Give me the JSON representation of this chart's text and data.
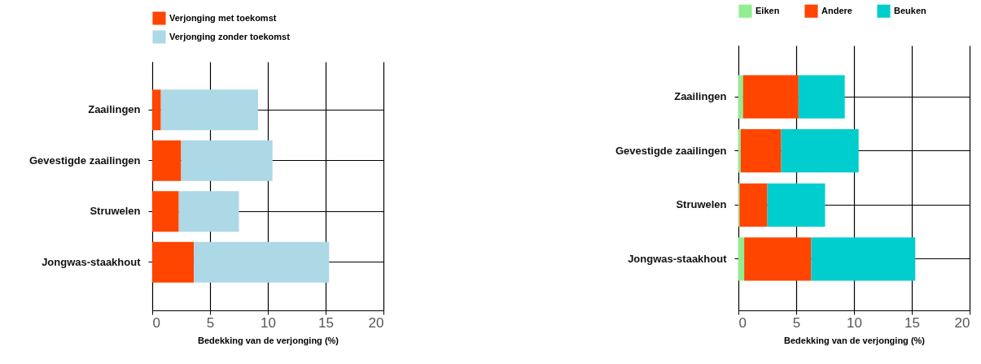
{
  "chart_data": [
    {
      "type": "bar",
      "orientation": "horizontal",
      "stacked": true,
      "categories": [
        "Zaailingen",
        "Gevestigde zaailingen",
        "Struwelen",
        "Jongwas-staakhout"
      ],
      "series": [
        {
          "name": "Verjonging met toekomst",
          "color": "#ff4500",
          "values": [
            0.75,
            2.5,
            2.3,
            3.6
          ]
        },
        {
          "name": "Verjonging zonder toekomst",
          "color": "#add8e6",
          "values": [
            8.4,
            7.9,
            5.2,
            11.7
          ]
        }
      ],
      "xlabel": "Bedekking van de verjonging (%)",
      "xlim": [
        0,
        20
      ],
      "xticks": [
        0,
        5,
        10,
        15,
        20
      ],
      "grid": true,
      "legend": "top"
    },
    {
      "type": "bar",
      "orientation": "horizontal",
      "stacked": true,
      "categories": [
        "Zaailingen",
        "Gevestigde zaailingen",
        "Struwelen",
        "Jongwas-staakhout"
      ],
      "series": [
        {
          "name": "Eiken",
          "color": "#90ee90",
          "values": [
            0.4,
            0.2,
            0.1,
            0.5
          ]
        },
        {
          "name": "Andere",
          "color": "#ff4500",
          "values": [
            4.8,
            3.5,
            2.4,
            5.8
          ]
        },
        {
          "name": "Beuken",
          "color": "#00cdcd",
          "values": [
            4.0,
            6.7,
            5.0,
            9.0
          ]
        }
      ],
      "xlabel": "Bedekking van de verjonging (%)",
      "xlim": [
        0,
        20
      ],
      "xticks": [
        0,
        5,
        10,
        15,
        20
      ],
      "grid": true,
      "legend": "top"
    }
  ]
}
